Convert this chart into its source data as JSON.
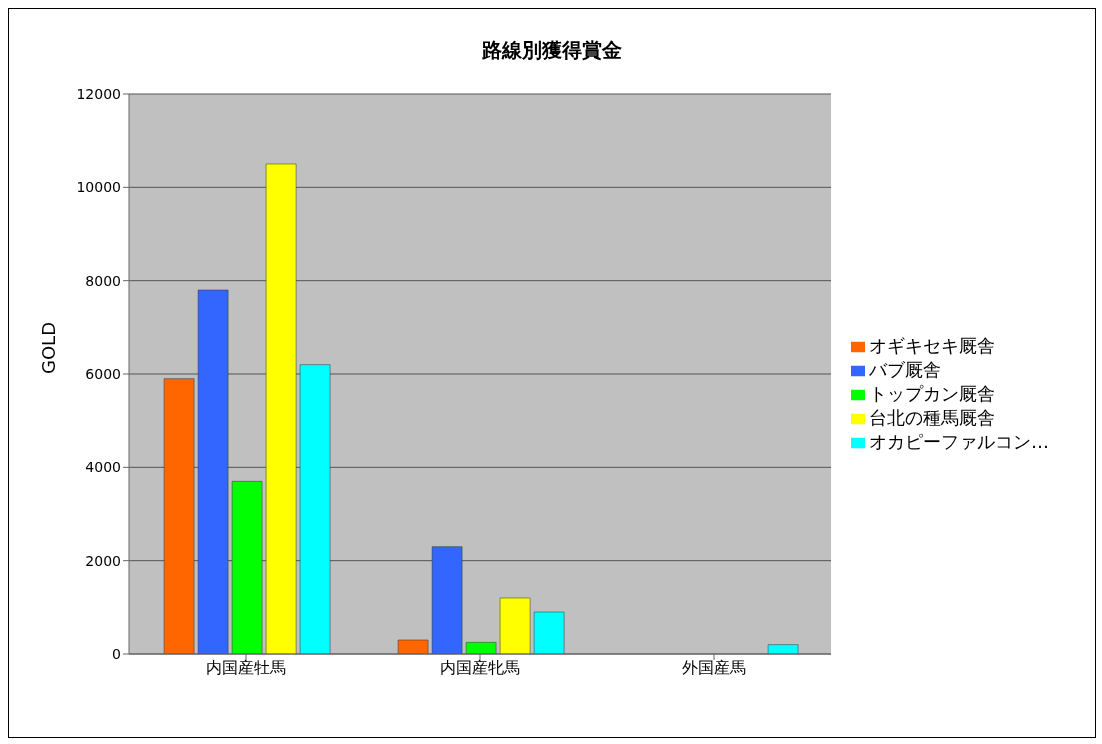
{
  "chart_data": {
    "type": "bar",
    "title": "路線別獲得賞金",
    "ylabel": "GOLD",
    "categories": [
      "内国産牡馬",
      "内国産牝馬",
      "外国産馬"
    ],
    "series": [
      {
        "name": "オギキセキ厩舎",
        "color": "#ff6600",
        "values": [
          5900,
          300,
          0
        ]
      },
      {
        "name": "バブ厩舎",
        "color": "#3366ff",
        "values": [
          7800,
          2300,
          0
        ]
      },
      {
        "name": "トップカン厩舎",
        "color": "#00ff00",
        "values": [
          3700,
          250,
          0
        ]
      },
      {
        "name": "台北の種馬厩舎",
        "color": "#ffff00",
        "values": [
          10500,
          1200,
          0
        ]
      },
      {
        "name": "オカピーファルコン…",
        "color": "#00ffff",
        "values": [
          6200,
          900,
          200
        ]
      }
    ],
    "ylim": [
      0,
      12000
    ],
    "yticks": [
      0,
      2000,
      4000,
      6000,
      8000,
      10000,
      12000
    ],
    "grid": "y",
    "legend": "right"
  }
}
